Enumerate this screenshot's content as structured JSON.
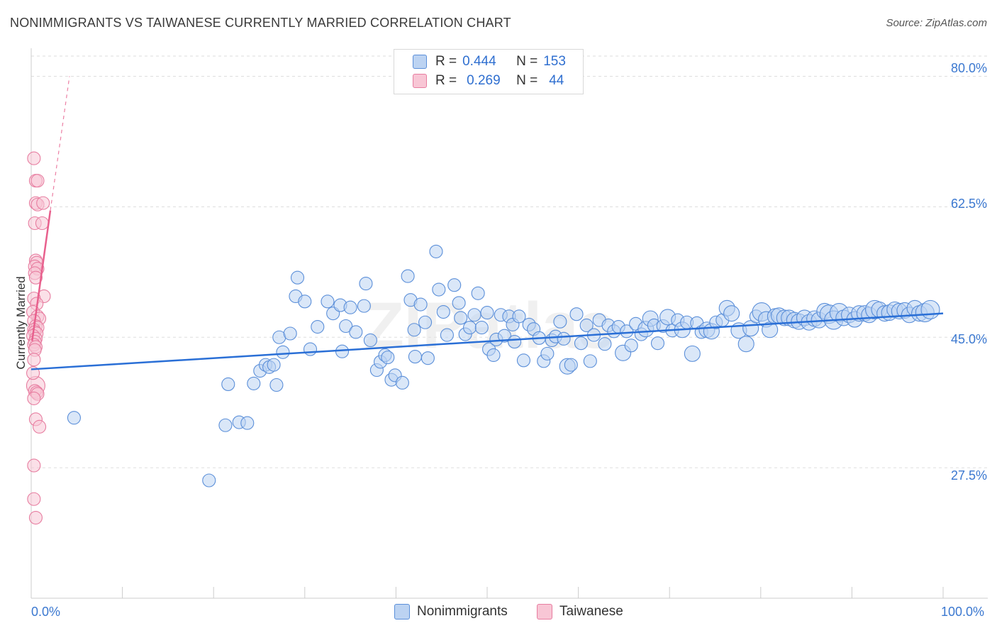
{
  "title": "NONIMMIGRANTS VS TAIWANESE CURRENTLY MARRIED CORRELATION CHART",
  "source": "Source: ZipAtlas.com",
  "watermark": "ZIPatlas",
  "legend": {
    "rows": [
      {
        "r_label": "R =",
        "r_value": "0.444",
        "n_label": "N =",
        "n_value": "153"
      },
      {
        "r_label": "R =",
        "r_value": "0.269",
        "n_label": "N =",
        "n_value": "44"
      }
    ]
  },
  "bottom_legend": [
    "Nonimmigrants",
    "Taiwanese"
  ],
  "colors": {
    "blue_fill": "#bcd3f2",
    "blue_stroke": "#5b8fd9",
    "blue_line": "#2a6fd6",
    "pink_fill": "#f8c6d5",
    "pink_stroke": "#e77da0",
    "pink_line": "#e8608d",
    "tick_text": "#3b78d0",
    "grid": "#dddddd"
  },
  "chart_data": {
    "type": "scatter",
    "title": "NONIMMIGRANTS VS TAIWANESE CURRENTLY MARRIED CORRELATION CHART",
    "xlabel": "",
    "ylabel": "Currently Married",
    "xlim": [
      0,
      100
    ],
    "ylim": [
      10,
      83
    ],
    "x_tick_labels": [
      "0.0%",
      "100.0%"
    ],
    "y_ticks": [
      {
        "value": 27.5,
        "label": "27.5%"
      },
      {
        "value": 45.0,
        "label": "45.0%"
      },
      {
        "value": 62.5,
        "label": "62.5%"
      },
      {
        "value": 80.0,
        "label": "80.0%"
      }
    ],
    "grid": true,
    "series": [
      {
        "name": "Nonimmigrants",
        "r": 0.444,
        "n": 153,
        "trend": {
          "x": [
            0,
            100
          ],
          "y": [
            40.7,
            48.2
          ],
          "style": "solid"
        },
        "points": [
          [
            4.7,
            34.2,
            9
          ],
          [
            19.5,
            25.8,
            9
          ],
          [
            21.3,
            33.2,
            9
          ],
          [
            21.6,
            38.7,
            9
          ],
          [
            22.8,
            33.6,
            9
          ],
          [
            23.7,
            33.5,
            9
          ],
          [
            24.4,
            38.8,
            9
          ],
          [
            25.1,
            40.5,
            9
          ],
          [
            25.7,
            41.3,
            9
          ],
          [
            26.1,
            41.0,
            9
          ],
          [
            26.6,
            41.3,
            9
          ],
          [
            26.9,
            38.6,
            9
          ],
          [
            27.2,
            45.0,
            9
          ],
          [
            27.6,
            43.0,
            9
          ],
          [
            28.4,
            45.5,
            9
          ],
          [
            29.0,
            50.5,
            9
          ],
          [
            29.2,
            53.0,
            9
          ],
          [
            30.0,
            49.8,
            9
          ],
          [
            30.6,
            43.4,
            9
          ],
          [
            31.4,
            46.4,
            9
          ],
          [
            32.5,
            49.8,
            9
          ],
          [
            33.1,
            48.2,
            9
          ],
          [
            33.9,
            49.3,
            9
          ],
          [
            34.1,
            43.1,
            9
          ],
          [
            34.5,
            46.5,
            9
          ],
          [
            35.0,
            49.0,
            9
          ],
          [
            35.6,
            45.7,
            9
          ],
          [
            36.5,
            49.2,
            9
          ],
          [
            36.7,
            52.2,
            9
          ],
          [
            37.2,
            44.6,
            9
          ],
          [
            37.9,
            40.6,
            9
          ],
          [
            38.3,
            41.7,
            9
          ],
          [
            38.8,
            42.6,
            9
          ],
          [
            39.1,
            42.3,
            9
          ],
          [
            39.5,
            39.3,
            9
          ],
          [
            39.9,
            39.9,
            9
          ],
          [
            40.7,
            38.9,
            9
          ],
          [
            41.3,
            53.2,
            9
          ],
          [
            41.6,
            50.0,
            9
          ],
          [
            42.0,
            46.0,
            9
          ],
          [
            42.1,
            42.4,
            9
          ],
          [
            42.7,
            49.4,
            9
          ],
          [
            43.2,
            47.0,
            9
          ],
          [
            43.5,
            42.2,
            9
          ],
          [
            44.4,
            56.5,
            9
          ],
          [
            44.7,
            51.4,
            9
          ],
          [
            45.2,
            48.4,
            9
          ],
          [
            45.6,
            45.3,
            9
          ],
          [
            46.4,
            52.0,
            9
          ],
          [
            46.9,
            49.6,
            9
          ],
          [
            47.1,
            47.6,
            9
          ],
          [
            47.6,
            45.4,
            9
          ],
          [
            48.1,
            46.3,
            9
          ],
          [
            48.6,
            48.0,
            9
          ],
          [
            49.0,
            50.9,
            9
          ],
          [
            49.4,
            46.3,
            9
          ],
          [
            50.0,
            48.3,
            9
          ],
          [
            50.2,
            43.4,
            9
          ],
          [
            50.7,
            42.6,
            9
          ],
          [
            51.0,
            44.7,
            9
          ],
          [
            51.5,
            48.0,
            9
          ],
          [
            51.9,
            45.2,
            9
          ],
          [
            52.4,
            47.8,
            9
          ],
          [
            52.8,
            46.7,
            9
          ],
          [
            53.0,
            44.4,
            9
          ],
          [
            53.5,
            47.8,
            9
          ],
          [
            54.0,
            41.9,
            9
          ],
          [
            54.6,
            46.7,
            9
          ],
          [
            55.1,
            46.1,
            9
          ],
          [
            55.7,
            44.9,
            9
          ],
          [
            56.2,
            41.8,
            9
          ],
          [
            56.6,
            42.8,
            9
          ],
          [
            57.1,
            44.6,
            9
          ],
          [
            57.5,
            45.1,
            9
          ],
          [
            58.0,
            47.1,
            9
          ],
          [
            58.4,
            44.8,
            9
          ],
          [
            58.8,
            41.1,
            11
          ],
          [
            59.2,
            41.3,
            9
          ],
          [
            59.8,
            48.1,
            9
          ],
          [
            60.3,
            44.2,
            9
          ],
          [
            60.9,
            46.6,
            9
          ],
          [
            61.3,
            41.8,
            9
          ],
          [
            61.7,
            45.3,
            9
          ],
          [
            62.3,
            47.3,
            9
          ],
          [
            62.9,
            44.1,
            9
          ],
          [
            63.3,
            46.6,
            9
          ],
          [
            63.9,
            45.8,
            9
          ],
          [
            64.4,
            46.4,
            9
          ],
          [
            64.9,
            42.9,
            11
          ],
          [
            65.3,
            45.8,
            9
          ],
          [
            65.8,
            43.9,
            9
          ],
          [
            66.3,
            46.8,
            9
          ],
          [
            66.9,
            45.4,
            9
          ],
          [
            67.4,
            46.1,
            11
          ],
          [
            67.9,
            47.5,
            11
          ],
          [
            68.3,
            46.6,
            9
          ],
          [
            68.7,
            44.2,
            9
          ],
          [
            69.3,
            46.5,
            9
          ],
          [
            69.8,
            47.7,
            11
          ],
          [
            70.3,
            45.9,
            9
          ],
          [
            70.9,
            47.3,
            9
          ],
          [
            71.4,
            46.0,
            11
          ],
          [
            71.9,
            47.0,
            9
          ],
          [
            72.5,
            42.8,
            11
          ],
          [
            73.0,
            46.9,
            9
          ],
          [
            73.5,
            45.7,
            9
          ],
          [
            74.1,
            46.0,
            11
          ],
          [
            74.6,
            45.8,
            11
          ],
          [
            75.1,
            47.0,
            9
          ],
          [
            75.8,
            47.3,
            9
          ],
          [
            76.3,
            48.9,
            11
          ],
          [
            76.8,
            48.2,
            11
          ],
          [
            77.6,
            45.9,
            11
          ],
          [
            78.4,
            44.1,
            11
          ],
          [
            78.9,
            46.2,
            11
          ],
          [
            79.5,
            47.8,
            9
          ],
          [
            80.1,
            48.4,
            13
          ],
          [
            80.6,
            47.4,
            11
          ],
          [
            81.0,
            46.0,
            11
          ],
          [
            81.6,
            47.8,
            11
          ],
          [
            82.0,
            47.9,
            11
          ],
          [
            82.6,
            47.6,
            11
          ],
          [
            83.1,
            47.6,
            11
          ],
          [
            83.7,
            47.3,
            11
          ],
          [
            84.2,
            47.1,
            11
          ],
          [
            84.8,
            47.6,
            11
          ],
          [
            85.3,
            47.0,
            11
          ],
          [
            85.9,
            47.5,
            11
          ],
          [
            86.4,
            47.3,
            11
          ],
          [
            87.0,
            48.5,
            11
          ],
          [
            87.5,
            48.1,
            13
          ],
          [
            88.0,
            47.3,
            13
          ],
          [
            88.6,
            48.3,
            13
          ],
          [
            89.1,
            47.6,
            11
          ],
          [
            89.7,
            48.0,
            11
          ],
          [
            90.3,
            47.4,
            11
          ],
          [
            90.8,
            48.2,
            11
          ],
          [
            91.4,
            48.2,
            11
          ],
          [
            91.9,
            48.0,
            11
          ],
          [
            92.5,
            48.7,
            13
          ],
          [
            93.0,
            48.7,
            11
          ],
          [
            93.6,
            48.2,
            11
          ],
          [
            94.1,
            48.3,
            11
          ],
          [
            94.7,
            48.7,
            11
          ],
          [
            95.2,
            48.5,
            11
          ],
          [
            95.8,
            48.6,
            11
          ],
          [
            96.3,
            48.0,
            11
          ],
          [
            96.9,
            48.9,
            11
          ],
          [
            97.4,
            48.2,
            11
          ],
          [
            98.0,
            48.3,
            13
          ],
          [
            98.6,
            48.7,
            13
          ]
        ]
      },
      {
        "name": "Taiwanese",
        "r": 0.269,
        "n": 44,
        "trend": {
          "x": [
            0.1,
            2.1
          ],
          "y": [
            44.5,
            62.0
          ],
          "style": "solid",
          "extension": {
            "x": [
              2.1,
              4.2
            ],
            "y": [
              62.0,
              80.0
            ],
            "style": "dashed"
          }
        },
        "points": [
          [
            0.3,
            69.0,
            9
          ],
          [
            0.5,
            66.0,
            9
          ],
          [
            0.7,
            66.0,
            9
          ],
          [
            0.5,
            63.0,
            9
          ],
          [
            0.7,
            62.8,
            9
          ],
          [
            1.3,
            63.0,
            9
          ],
          [
            0.4,
            60.3,
            9
          ],
          [
            1.2,
            60.3,
            9
          ],
          [
            0.5,
            55.3,
            9
          ],
          [
            0.6,
            55.0,
            9
          ],
          [
            0.4,
            54.5,
            9
          ],
          [
            0.7,
            54.2,
            9
          ],
          [
            0.4,
            53.6,
            9
          ],
          [
            0.5,
            53.0,
            9
          ],
          [
            1.4,
            50.5,
            9
          ],
          [
            0.3,
            50.2,
            9
          ],
          [
            0.6,
            49.5,
            9
          ],
          [
            0.2,
            48.4,
            9
          ],
          [
            0.7,
            47.8,
            9
          ],
          [
            0.9,
            47.5,
            9
          ],
          [
            0.3,
            47.2,
            9
          ],
          [
            0.5,
            46.5,
            9
          ],
          [
            0.7,
            46.3,
            9
          ],
          [
            0.3,
            46.0,
            9
          ],
          [
            0.4,
            45.7,
            9
          ],
          [
            0.6,
            45.5,
            9
          ],
          [
            0.2,
            45.2,
            9
          ],
          [
            0.5,
            44.8,
            9
          ],
          [
            0.4,
            44.4,
            9
          ],
          [
            0.3,
            44.0,
            9
          ],
          [
            0.5,
            43.7,
            9
          ],
          [
            0.4,
            43.3,
            9
          ],
          [
            0.3,
            42.0,
            9
          ],
          [
            0.5,
            38.5,
            13
          ],
          [
            0.4,
            37.8,
            9
          ],
          [
            0.6,
            37.6,
            9
          ],
          [
            0.7,
            37.4,
            9
          ],
          [
            0.3,
            36.8,
            9
          ],
          [
            0.5,
            34.0,
            9
          ],
          [
            0.9,
            33.0,
            9
          ],
          [
            0.3,
            27.8,
            9
          ],
          [
            0.3,
            23.3,
            9
          ],
          [
            0.5,
            20.8,
            9
          ],
          [
            0.2,
            40.2,
            9
          ]
        ]
      }
    ]
  }
}
